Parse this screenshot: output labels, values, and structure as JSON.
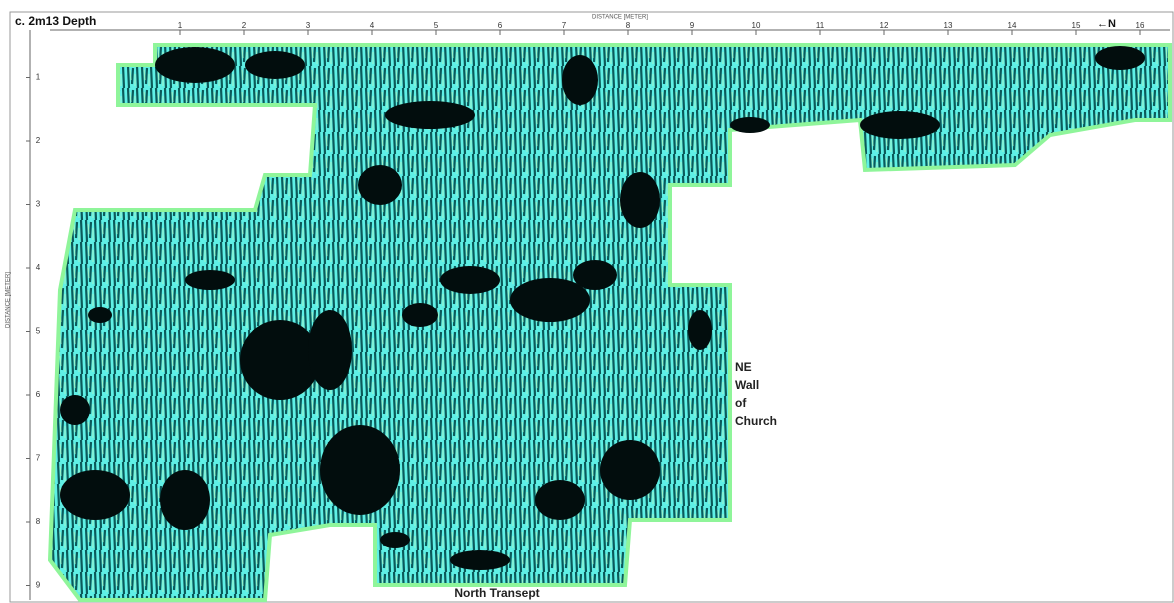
{
  "header": {
    "title": "c. 2m13 Depth"
  },
  "x_axis": {
    "label": "DISTANCE [METER]",
    "ticks": [
      1,
      2,
      3,
      4,
      5,
      6,
      7,
      8,
      9,
      10,
      11,
      12,
      13,
      14,
      15,
      16
    ]
  },
  "y_axis": {
    "label": "DISTANCE [METER]",
    "ticks": [
      1,
      2,
      3,
      4,
      5,
      6,
      7,
      8,
      9
    ]
  },
  "north_arrow": "←N",
  "annotations": {
    "wall": [
      "NE",
      "Wall",
      "of",
      "Church"
    ],
    "transept": "North Transept"
  }
}
